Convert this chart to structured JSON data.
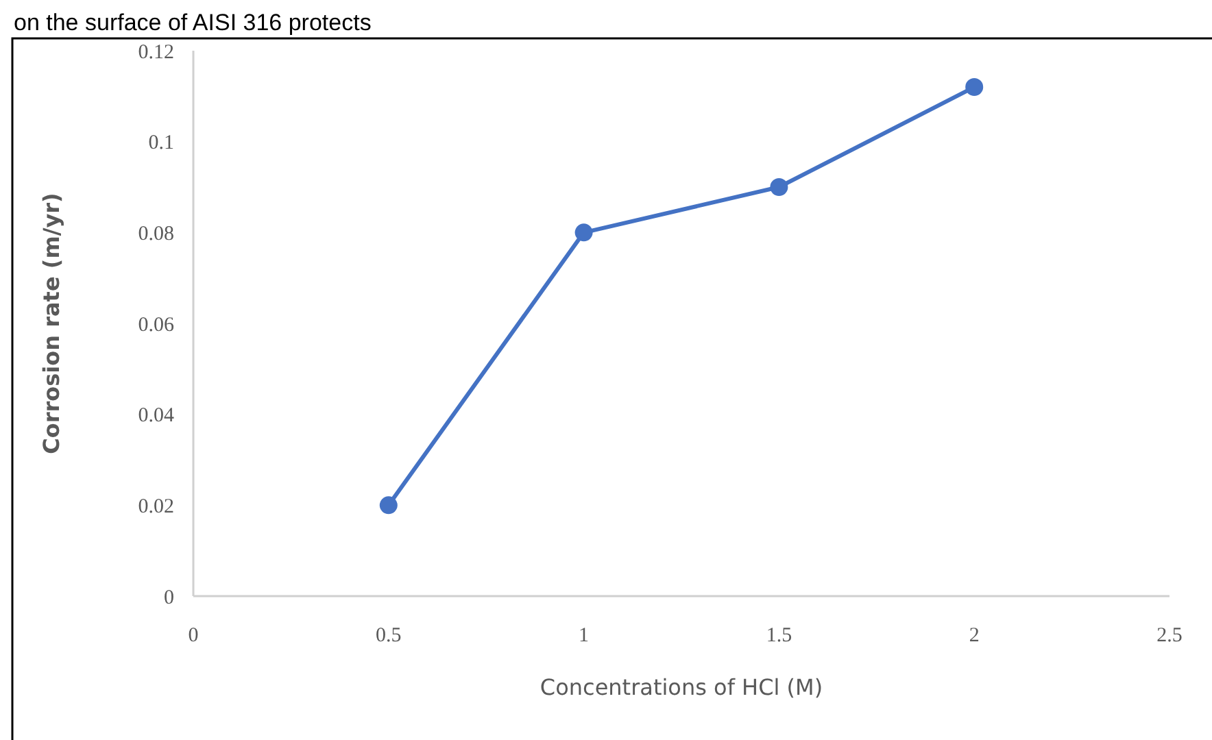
{
  "chart_data": {
    "type": "line",
    "annotations": [
      "on the surface of AISI 316 protects"
    ],
    "xlabel": "Concentrations of HCl (M)",
    "ylabel": "Corrosion rate (m/yr)",
    "x": [
      0.5,
      1,
      1.5,
      2
    ],
    "series": [
      {
        "color": "#4472c4",
        "values": [
          0.02,
          0.08,
          0.09,
          0.112
        ]
      }
    ],
    "xlim": [
      0,
      2.5
    ],
    "xticks": [
      0,
      0.5,
      1,
      1.5,
      2,
      2.5
    ],
    "ylim": [
      0,
      0.12
    ],
    "yticks": [
      0,
      0.02,
      0.04,
      0.06,
      0.08,
      0.1,
      0.12
    ],
    "grid": false,
    "marker": "circle",
    "line_style": "solid"
  }
}
